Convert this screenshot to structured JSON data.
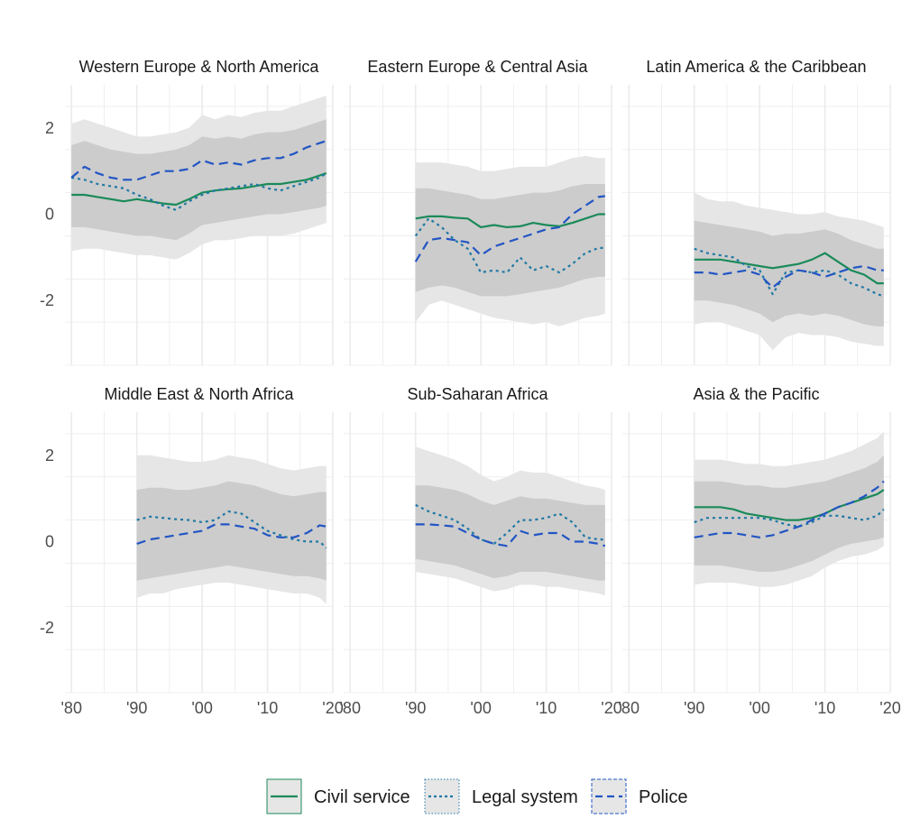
{
  "chart_data": {
    "type": "line",
    "facets": [
      {
        "title": "Western Europe & North America",
        "x": [
          1980,
          1982,
          1984,
          1986,
          1988,
          1990,
          1992,
          1994,
          1996,
          1998,
          2000,
          2002,
          2004,
          2006,
          2008,
          2010,
          2012,
          2014,
          2016,
          2018,
          2019
        ],
        "series": {
          "civil_service": [
            0.45,
            0.45,
            0.4,
            0.35,
            0.3,
            0.35,
            0.3,
            0.25,
            0.22,
            0.35,
            0.5,
            0.55,
            0.58,
            0.6,
            0.65,
            0.7,
            0.7,
            0.75,
            0.8,
            0.9,
            0.95
          ],
          "legal_system": [
            0.85,
            0.8,
            0.7,
            0.65,
            0.6,
            0.45,
            0.35,
            0.2,
            0.1,
            0.3,
            0.45,
            0.55,
            0.6,
            0.65,
            0.7,
            0.6,
            0.55,
            0.65,
            0.75,
            0.85,
            0.95
          ],
          "police": [
            0.85,
            1.1,
            0.95,
            0.85,
            0.8,
            0.8,
            0.9,
            1.0,
            1.0,
            1.05,
            1.25,
            1.15,
            1.2,
            1.15,
            1.25,
            1.3,
            1.3,
            1.4,
            1.55,
            1.65,
            1.7
          ]
        },
        "band_outer": {
          "lower": [
            -0.85,
            -0.8,
            -0.8,
            -0.85,
            -0.9,
            -0.95,
            -0.95,
            -1.0,
            -1.05,
            -0.9,
            -0.7,
            -0.6,
            -0.6,
            -0.55,
            -0.5,
            -0.5,
            -0.5,
            -0.45,
            -0.35,
            -0.25,
            -0.2
          ],
          "upper": [
            2.1,
            2.2,
            2.1,
            2.0,
            1.9,
            1.8,
            1.8,
            1.85,
            1.9,
            2.0,
            2.3,
            2.2,
            2.3,
            2.25,
            2.35,
            2.4,
            2.4,
            2.5,
            2.6,
            2.7,
            2.75
          ]
        },
        "band_inner": {
          "lower": [
            -0.3,
            -0.3,
            -0.35,
            -0.4,
            -0.45,
            -0.5,
            -0.5,
            -0.55,
            -0.6,
            -0.45,
            -0.25,
            -0.2,
            -0.15,
            -0.1,
            -0.05,
            0.0,
            0.0,
            0.05,
            0.1,
            0.15,
            0.2
          ],
          "upper": [
            1.6,
            1.7,
            1.6,
            1.5,
            1.45,
            1.4,
            1.4,
            1.45,
            1.5,
            1.6,
            1.8,
            1.75,
            1.8,
            1.75,
            1.85,
            1.9,
            1.9,
            1.95,
            2.05,
            2.15,
            2.2
          ]
        }
      },
      {
        "title": "Eastern Europe & Central Asia",
        "x": [
          1990,
          1992,
          1994,
          1996,
          1998,
          2000,
          2002,
          2004,
          2006,
          2008,
          2010,
          2012,
          2014,
          2016,
          2018,
          2019
        ],
        "series": {
          "civil_service": [
            -0.1,
            -0.05,
            -0.05,
            -0.08,
            -0.1,
            -0.3,
            -0.25,
            -0.3,
            -0.28,
            -0.2,
            -0.25,
            -0.28,
            -0.2,
            -0.1,
            0.0,
            0.0
          ],
          "legal_system": [
            -0.5,
            -0.1,
            -0.3,
            -0.6,
            -0.8,
            -1.35,
            -1.3,
            -1.35,
            -1.0,
            -1.3,
            -1.2,
            -1.35,
            -1.15,
            -0.9,
            -0.78,
            -0.78
          ],
          "police": [
            -1.1,
            -0.6,
            -0.55,
            -0.6,
            -0.65,
            -0.95,
            -0.75,
            -0.65,
            -0.55,
            -0.45,
            -0.35,
            -0.3,
            0.0,
            0.2,
            0.4,
            0.42
          ]
        },
        "band_outer": {
          "lower": [
            -2.5,
            -2.1,
            -2.0,
            -2.1,
            -2.2,
            -2.3,
            -2.4,
            -2.45,
            -2.5,
            -2.55,
            -2.5,
            -2.6,
            -2.5,
            -2.4,
            -2.35,
            -2.3
          ],
          "upper": [
            1.2,
            1.2,
            1.2,
            1.15,
            1.1,
            1.0,
            1.0,
            1.05,
            1.1,
            1.1,
            1.1,
            1.2,
            1.3,
            1.35,
            1.3,
            1.3
          ]
        },
        "band_inner": {
          "lower": [
            -1.8,
            -1.7,
            -1.65,
            -1.7,
            -1.8,
            -1.9,
            -1.9,
            -1.9,
            -1.85,
            -1.8,
            -1.75,
            -1.7,
            -1.6,
            -1.5,
            -1.45,
            -1.45
          ],
          "upper": [
            0.6,
            0.6,
            0.55,
            0.5,
            0.45,
            0.35,
            0.35,
            0.4,
            0.45,
            0.5,
            0.5,
            0.55,
            0.65,
            0.7,
            0.7,
            0.7
          ]
        }
      },
      {
        "title": "Latin America & the Caribbean",
        "x": [
          1990,
          1992,
          1994,
          1996,
          1998,
          2000,
          2002,
          2004,
          2006,
          2008,
          2010,
          2012,
          2014,
          2016,
          2018,
          2019
        ],
        "series": {
          "civil_service": [
            -1.05,
            -1.05,
            -1.05,
            -1.1,
            -1.15,
            -1.2,
            -1.25,
            -1.2,
            -1.15,
            -1.05,
            -0.9,
            -1.1,
            -1.3,
            -1.4,
            -1.6,
            -1.6
          ],
          "legal_system": [
            -0.8,
            -0.9,
            -0.95,
            -1.0,
            -1.2,
            -1.3,
            -1.85,
            -1.35,
            -1.3,
            -1.35,
            -1.3,
            -1.4,
            -1.6,
            -1.7,
            -1.85,
            -1.9
          ],
          "police": [
            -1.35,
            -1.35,
            -1.4,
            -1.35,
            -1.3,
            -1.4,
            -1.7,
            -1.45,
            -1.3,
            -1.35,
            -1.45,
            -1.35,
            -1.25,
            -1.2,
            -1.3,
            -1.3
          ]
        },
        "band_outer": {
          "lower": [
            -2.55,
            -2.5,
            -2.5,
            -2.6,
            -2.7,
            -2.8,
            -3.15,
            -2.85,
            -2.75,
            -2.8,
            -2.8,
            -2.85,
            -2.95,
            -3.0,
            -3.05,
            -3.05
          ],
          "upper": [
            0.5,
            0.35,
            0.3,
            0.3,
            0.2,
            0.15,
            0.1,
            0.05,
            0.0,
            0.0,
            0.05,
            -0.05,
            -0.1,
            -0.15,
            -0.25,
            -0.3
          ]
        },
        "band_inner": {
          "lower": [
            -2.0,
            -2.0,
            -2.05,
            -2.1,
            -2.2,
            -2.3,
            -2.5,
            -2.35,
            -2.3,
            -2.35,
            -2.3,
            -2.35,
            -2.45,
            -2.55,
            -2.6,
            -2.6
          ],
          "upper": [
            -0.15,
            -0.2,
            -0.25,
            -0.3,
            -0.35,
            -0.4,
            -0.5,
            -0.45,
            -0.45,
            -0.4,
            -0.35,
            -0.45,
            -0.6,
            -0.7,
            -0.8,
            -0.8
          ]
        }
      },
      {
        "title": "Middle East & North Africa",
        "x": [
          1990,
          1992,
          1994,
          1996,
          1998,
          2000,
          2002,
          2004,
          2006,
          2008,
          2010,
          2012,
          2014,
          2016,
          2018,
          2019
        ],
        "series": {
          "legal_system": [
            0.5,
            0.58,
            0.55,
            0.52,
            0.5,
            0.45,
            0.5,
            0.7,
            0.65,
            0.45,
            0.25,
            0.15,
            0.05,
            0.0,
            0.0,
            -0.15
          ],
          "police": [
            -0.05,
            0.05,
            0.1,
            0.15,
            0.2,
            0.25,
            0.4,
            0.4,
            0.35,
            0.3,
            0.15,
            0.1,
            0.1,
            0.2,
            0.38,
            0.35
          ]
        },
        "band_outer": {
          "lower": [
            -1.3,
            -1.2,
            -1.2,
            -1.1,
            -1.05,
            -1.0,
            -0.95,
            -0.95,
            -1.0,
            -1.05,
            -1.1,
            -1.15,
            -1.2,
            -1.2,
            -1.3,
            -1.45
          ],
          "upper": [
            2.0,
            2.0,
            1.95,
            1.9,
            1.85,
            1.85,
            1.9,
            2.0,
            1.95,
            1.9,
            1.8,
            1.7,
            1.65,
            1.7,
            1.75,
            1.75
          ]
        },
        "band_inner": {
          "lower": [
            -0.9,
            -0.85,
            -0.8,
            -0.75,
            -0.7,
            -0.65,
            -0.6,
            -0.55,
            -0.6,
            -0.65,
            -0.7,
            -0.75,
            -0.8,
            -0.8,
            -0.85,
            -0.9
          ],
          "upper": [
            1.2,
            1.25,
            1.25,
            1.2,
            1.2,
            1.25,
            1.3,
            1.4,
            1.35,
            1.3,
            1.2,
            1.1,
            1.05,
            1.1,
            1.15,
            1.15
          ]
        }
      },
      {
        "title": "Sub-Saharan Africa",
        "x": [
          1990,
          1992,
          1994,
          1996,
          1998,
          2000,
          2002,
          2004,
          2006,
          2008,
          2010,
          2012,
          2014,
          2016,
          2018,
          2019
        ],
        "series": {
          "legal_system": [
            0.85,
            0.7,
            0.6,
            0.5,
            0.3,
            0.05,
            -0.05,
            0.2,
            0.5,
            0.5,
            0.55,
            0.65,
            0.45,
            0.1,
            0.05,
            0.05
          ],
          "police": [
            0.4,
            0.4,
            0.38,
            0.35,
            0.2,
            0.05,
            -0.05,
            -0.1,
            0.25,
            0.15,
            0.2,
            0.2,
            0.0,
            0.0,
            -0.05,
            -0.1
          ]
        },
        "band_outer": {
          "lower": [
            -0.7,
            -0.75,
            -0.8,
            -0.85,
            -0.95,
            -1.05,
            -1.15,
            -1.1,
            -1.0,
            -1.0,
            -1.05,
            -1.05,
            -1.1,
            -1.15,
            -1.2,
            -1.25
          ],
          "upper": [
            2.2,
            2.1,
            2.0,
            1.9,
            1.75,
            1.55,
            1.4,
            1.5,
            1.65,
            1.6,
            1.6,
            1.5,
            1.4,
            1.3,
            1.25,
            1.2
          ]
        },
        "band_inner": {
          "lower": [
            -0.4,
            -0.45,
            -0.5,
            -0.55,
            -0.65,
            -0.75,
            -0.85,
            -0.8,
            -0.7,
            -0.7,
            -0.7,
            -0.75,
            -0.8,
            -0.85,
            -0.9,
            -0.9
          ],
          "upper": [
            1.3,
            1.3,
            1.25,
            1.2,
            1.1,
            0.95,
            0.85,
            0.95,
            1.05,
            1.0,
            1.0,
            0.95,
            0.9,
            0.85,
            0.85,
            0.85
          ]
        }
      },
      {
        "title": "Asia & the Pacific",
        "x": [
          1990,
          1992,
          1994,
          1996,
          1998,
          2000,
          2002,
          2004,
          2006,
          2008,
          2010,
          2012,
          2014,
          2016,
          2018,
          2019
        ],
        "series": {
          "civil_service": [
            0.8,
            0.8,
            0.8,
            0.75,
            0.65,
            0.6,
            0.55,
            0.5,
            0.5,
            0.55,
            0.65,
            0.8,
            0.9,
            1.0,
            1.1,
            1.2
          ],
          "legal_system": [
            0.45,
            0.55,
            0.55,
            0.55,
            0.55,
            0.55,
            0.5,
            0.4,
            0.35,
            0.45,
            0.6,
            0.6,
            0.55,
            0.5,
            0.6,
            0.75
          ],
          "police": [
            0.1,
            0.15,
            0.2,
            0.2,
            0.15,
            0.1,
            0.15,
            0.25,
            0.35,
            0.5,
            0.65,
            0.8,
            0.9,
            1.05,
            1.25,
            1.4
          ]
        },
        "band_outer": {
          "lower": [
            -1.0,
            -0.95,
            -0.95,
            -0.95,
            -1.0,
            -1.05,
            -1.05,
            -1.0,
            -0.9,
            -0.8,
            -0.6,
            -0.45,
            -0.35,
            -0.3,
            -0.2,
            -0.1
          ],
          "upper": [
            1.9,
            1.9,
            1.9,
            1.85,
            1.8,
            1.8,
            1.75,
            1.75,
            1.8,
            1.85,
            1.9,
            2.0,
            2.1,
            2.25,
            2.4,
            2.55
          ]
        },
        "band_inner": {
          "lower": [
            -0.55,
            -0.55,
            -0.55,
            -0.6,
            -0.65,
            -0.7,
            -0.7,
            -0.65,
            -0.55,
            -0.45,
            -0.3,
            -0.15,
            -0.05,
            0.0,
            0.05,
            0.1
          ],
          "upper": [
            1.4,
            1.4,
            1.4,
            1.35,
            1.3,
            1.3,
            1.25,
            1.25,
            1.3,
            1.35,
            1.4,
            1.5,
            1.6,
            1.7,
            1.85,
            2.0
          ]
        }
      }
    ],
    "xlim": [
      1979,
      2020
    ],
    "ylim": [
      -3.5,
      3.0
    ],
    "x_ticks": [
      1980,
      1990,
      2000,
      2010,
      2020
    ],
    "x_tick_labels": [
      "'80",
      "'90",
      "'00",
      "'10",
      "'20"
    ],
    "y_ticks": [
      -2,
      0,
      2
    ],
    "y_tick_labels": [
      "-2",
      "0",
      "2"
    ],
    "legend": {
      "position": "bottom",
      "items": [
        {
          "key": "civil_service",
          "label": "Civil service"
        },
        {
          "key": "legal_system",
          "label": "Legal system"
        },
        {
          "key": "police",
          "label": "Police"
        }
      ]
    },
    "colors": {
      "civil_service": "#1b8a5a",
      "legal_system": "#1f78a4",
      "police": "#2255c4",
      "band_outer": "#e6e6e6",
      "band_inner": "#cccccc",
      "grid": "#ebebeb"
    }
  }
}
